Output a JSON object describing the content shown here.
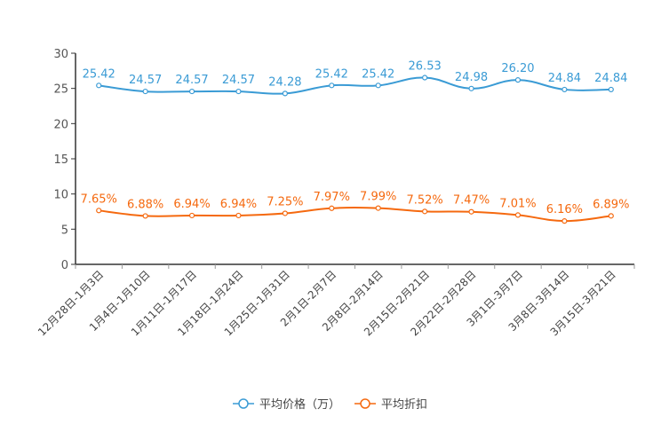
{
  "chart_data": {
    "type": "line",
    "title": "",
    "xlabel": "",
    "ylabel": "",
    "ylim": [
      0,
      30
    ],
    "yticks": [
      "0",
      "5",
      "10",
      "15",
      "20",
      "25",
      "30"
    ],
    "grid": false,
    "legend_position": "bottom-center",
    "categories": [
      "12月28日-1月3日",
      "1月4日-1月10日",
      "1月11日-1月17日",
      "1月18日-1月24日",
      "1月25日-1月31日",
      "2月1日-2月7日",
      "2月8日-2月14日",
      "2月15日-2月21日",
      "2月22日-2月28日",
      "3月1日-3月7日",
      "3月8日-3月14日",
      "3月15日-3月21日"
    ],
    "series": [
      {
        "name": "平均价格（万）",
        "color": "#3a9bd5",
        "values": [
          25.42,
          24.57,
          24.57,
          24.57,
          24.28,
          25.42,
          25.42,
          26.53,
          24.98,
          26.2,
          24.84,
          24.84
        ],
        "labels": [
          "25.42",
          "24.57",
          "24.57",
          "24.57",
          "24.28",
          "25.42",
          "25.42",
          "26.53",
          "24.98",
          "26.20",
          "24.84",
          "24.84"
        ]
      },
      {
        "name": "平均折扣",
        "color": "#f5690f",
        "values": [
          7.65,
          6.88,
          6.94,
          6.94,
          7.25,
          7.97,
          7.99,
          7.52,
          7.47,
          7.01,
          6.16,
          6.89
        ],
        "labels": [
          "7.65%",
          "6.88%",
          "6.94%",
          "6.94%",
          "7.25%",
          "7.97%",
          "7.99%",
          "7.52%",
          "7.47%",
          "7.01%",
          "6.16%",
          "6.89%"
        ]
      }
    ]
  }
}
